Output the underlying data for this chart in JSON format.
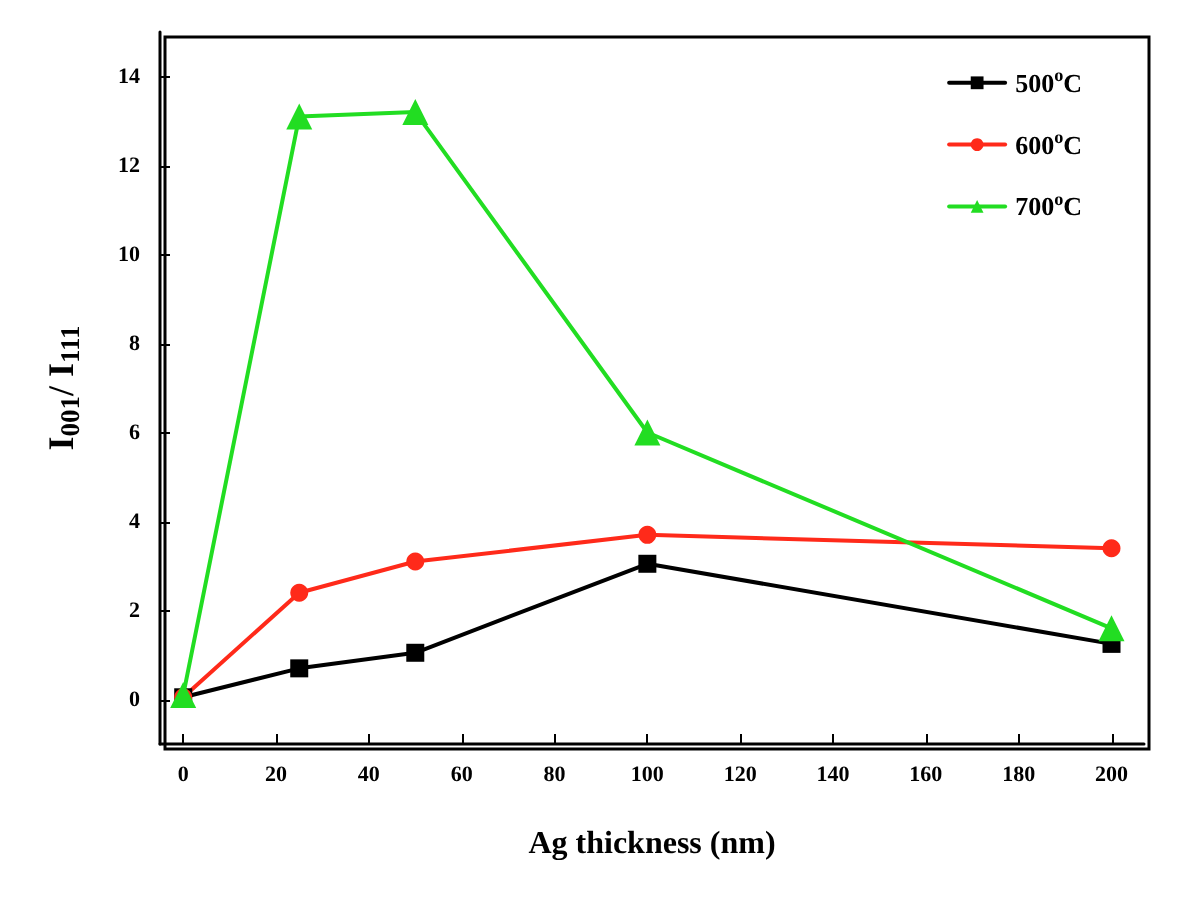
{
  "chart_data": {
    "type": "line",
    "xlabel": "Ag thickness (nm)",
    "ylabel": "I$_{001}$/ I$_{111}$",
    "x": [
      0,
      25,
      50,
      100,
      200
    ],
    "series": [
      {
        "name": "500$^{o}$C",
        "color": "#000000",
        "marker": "square",
        "values": [
          0.05,
          0.7,
          1.05,
          3.05,
          1.25
        ]
      },
      {
        "name": "600$^{o}$C",
        "color": "#ff2a1a",
        "marker": "circle",
        "values": [
          0.05,
          2.4,
          3.1,
          3.7,
          3.4
        ]
      },
      {
        "name": "700$^{o}$C",
        "color": "#22dd22",
        "marker": "triangle",
        "values": [
          0.1,
          13.1,
          13.2,
          6.0,
          1.6
        ]
      }
    ],
    "xlim": [
      -5,
      207
    ],
    "xticks": [
      0,
      20,
      40,
      60,
      80,
      100,
      120,
      140,
      160,
      180,
      200
    ],
    "ylim": [
      -1,
      15
    ],
    "yticks": [
      0,
      2,
      4,
      6,
      8,
      10,
      12,
      14
    ],
    "legend": "top right",
    "line_style": "solid"
  }
}
